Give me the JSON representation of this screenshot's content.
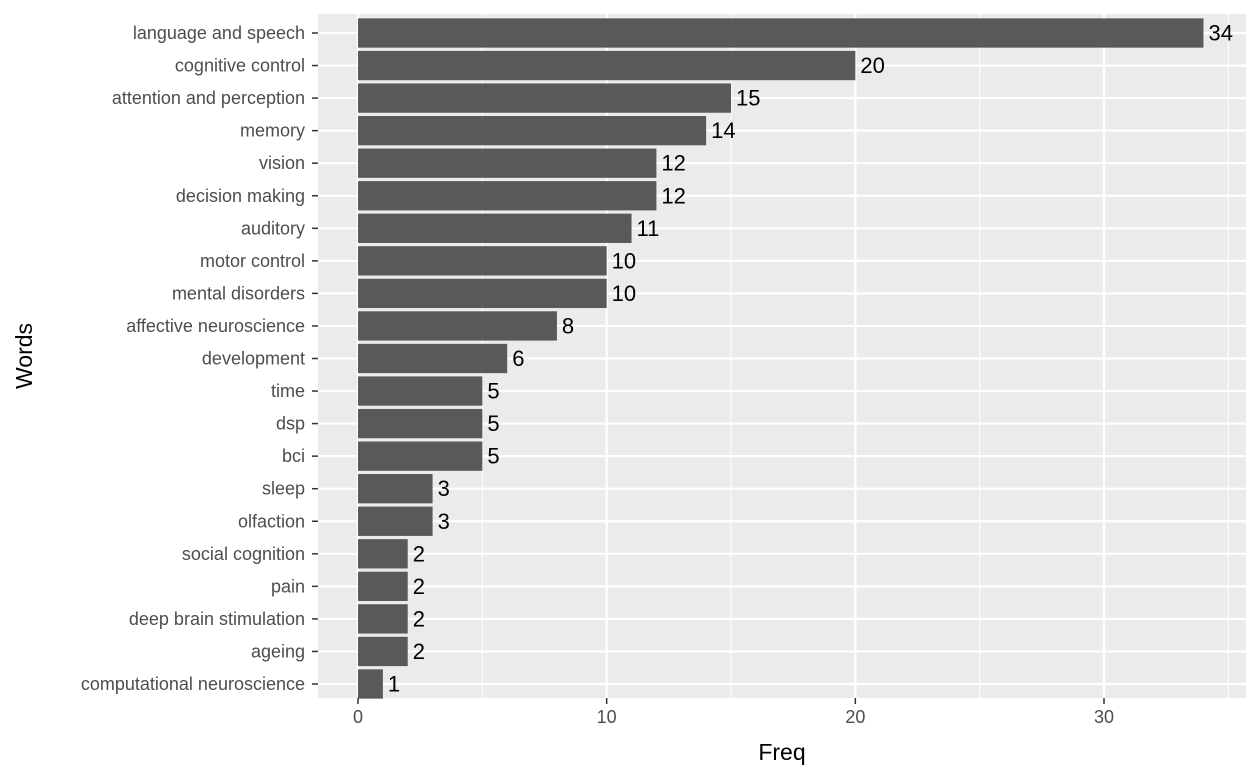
{
  "chart_data": {
    "type": "bar",
    "orientation": "horizontal",
    "categories": [
      "language and speech",
      "cognitive control",
      "attention and perception",
      "memory",
      "vision",
      "decision making",
      "auditory",
      "motor control",
      "mental disorders",
      "affective neuroscience",
      "development",
      "time",
      "dsp",
      "bci",
      "sleep",
      "olfaction",
      "social cognition",
      "pain",
      "deep brain stimulation",
      "ageing",
      "computational neuroscience"
    ],
    "values": [
      34,
      20,
      15,
      14,
      12,
      12,
      11,
      10,
      10,
      8,
      6,
      5,
      5,
      5,
      3,
      3,
      2,
      2,
      2,
      2,
      1
    ],
    "xlabel": "Freq",
    "ylabel": "Words",
    "xlim": [
      0,
      35
    ],
    "x_ticks": [
      0,
      10,
      20,
      30
    ],
    "grid": true,
    "legend": "none",
    "data_labels": true
  },
  "colors": {
    "panel_background": "#ebebeb",
    "grid_major": "#ffffff",
    "bar_fill": "#595959",
    "tick_text": "#4d4d4d",
    "label_text": "#000000"
  }
}
